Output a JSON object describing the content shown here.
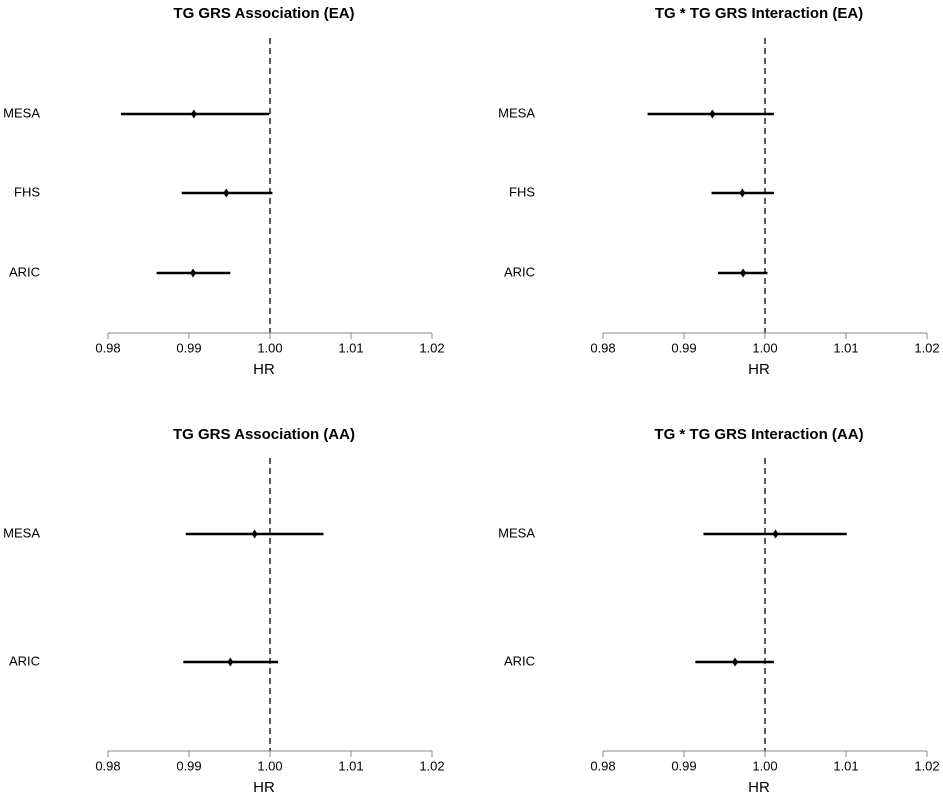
{
  "chart_data": [
    {
      "type": "forest",
      "title": "TG GRS Association (EA)",
      "xlabel": "HR",
      "xlim": [
        0.98,
        1.02
      ],
      "xticks": [
        "0.98",
        "0.99",
        "1.00",
        "1.01",
        "1.02"
      ],
      "reference_line": 1.0,
      "categories": [
        "MESA",
        "FHS",
        "ARIC"
      ],
      "estimates": [
        0.9906,
        0.9946,
        0.9905
      ],
      "lower": [
        0.9816,
        0.9891,
        0.986
      ],
      "upper": [
        0.9999,
        1.0003,
        0.9951
      ],
      "grid": false
    },
    {
      "type": "forest",
      "title": "TG * TG GRS Interaction (EA)",
      "xlabel": "HR",
      "xlim": [
        0.98,
        1.02
      ],
      "xticks": [
        "0.98",
        "0.99",
        "1.00",
        "1.01",
        "1.02"
      ],
      "reference_line": 1.0,
      "categories": [
        "MESA",
        "FHS",
        "ARIC"
      ],
      "estimates": [
        0.9935,
        0.9972,
        0.9973
      ],
      "lower": [
        0.9855,
        0.9934,
        0.9942
      ],
      "upper": [
        1.0011,
        1.0011,
        1.0003
      ],
      "grid": false
    },
    {
      "type": "forest",
      "title": "TG GRS Association (AA)",
      "xlabel": "HR",
      "xlim": [
        0.98,
        1.02
      ],
      "xticks": [
        "0.98",
        "0.99",
        "1.00",
        "1.01",
        "1.02"
      ],
      "reference_line": 1.0,
      "categories": [
        "MESA",
        "ARIC"
      ],
      "estimates": [
        0.9981,
        0.9951
      ],
      "lower": [
        0.9896,
        0.9893
      ],
      "upper": [
        1.0066,
        1.001
      ],
      "grid": false
    },
    {
      "type": "forest",
      "title": "TG * TG GRS Interaction (AA)",
      "xlabel": "HR",
      "xlim": [
        0.98,
        1.02
      ],
      "xticks": [
        "0.98",
        "0.99",
        "1.00",
        "1.01",
        "1.02"
      ],
      "reference_line": 1.0,
      "categories": [
        "MESA",
        "ARIC"
      ],
      "estimates": [
        1.0013,
        0.9963
      ],
      "lower": [
        0.9924,
        0.9914
      ],
      "upper": [
        1.0101,
        1.0011
      ],
      "grid": false
    }
  ]
}
